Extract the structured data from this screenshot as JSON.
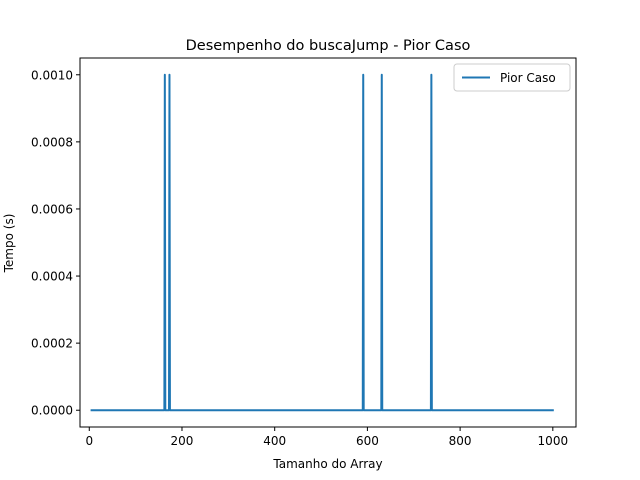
{
  "chart_data": {
    "type": "line",
    "title": "Desempenho do buscaJump - Pior Caso",
    "xlabel": "Tamanho do Array",
    "ylabel": "Tempo (s)",
    "xlim": [
      -20,
      1050
    ],
    "ylim": [
      -5e-05,
      0.00105
    ],
    "x_ticks": [
      0,
      200,
      400,
      600,
      800,
      1000
    ],
    "x_tick_labels": [
      "0",
      "200",
      "400",
      "600",
      "800",
      "1000"
    ],
    "y_ticks": [
      0.0,
      0.0002,
      0.0004,
      0.0006,
      0.0008,
      0.001
    ],
    "y_tick_labels": [
      "0.0000",
      "0.0002",
      "0.0004",
      "0.0006",
      "0.0008",
      "0.0010"
    ],
    "grid": false,
    "legend_position": "top-right",
    "series": [
      {
        "name": "Pior Caso",
        "color": "#1f77b4",
        "x": [
          5,
          162,
          163,
          164,
          172,
          173,
          174,
          590,
          591,
          592,
          630,
          631,
          632,
          737,
          738,
          739,
          1000
        ],
        "y": [
          0.0,
          0.0,
          0.001,
          0.0,
          0.0,
          0.001,
          0.0,
          0.0,
          0.001,
          0.0,
          0.0,
          0.001,
          0.0,
          0.0,
          0.001,
          0.0,
          0.0
        ]
      }
    ]
  }
}
